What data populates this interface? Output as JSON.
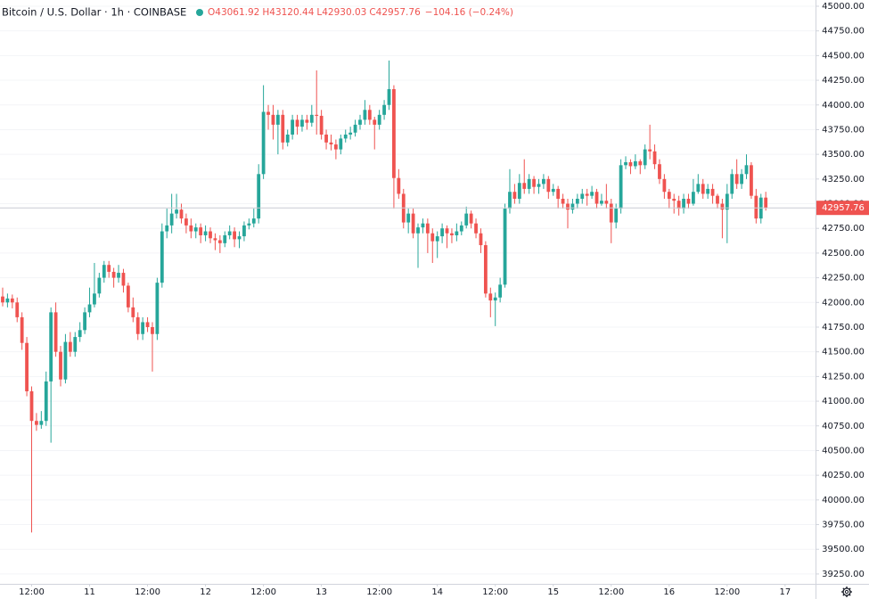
{
  "chart_data": {
    "type": "candlestick",
    "title": "Bitcoin / U.S. Dollar · 1h · COINBASE",
    "legend": [
      "O43061.92",
      "H43120.44",
      "L42930.03",
      "C42957.76",
      "−104.16 (−0.24%)"
    ],
    "up_color": "#26a69a",
    "down_color": "#ef5350",
    "last_price": 42957.76,
    "xlim": [
      -0.55,
      168.3
    ],
    "xticks": [
      {
        "value": 6,
        "label": "12:00"
      },
      {
        "value": 18,
        "label": "11"
      },
      {
        "value": 30,
        "label": "12:00"
      },
      {
        "value": 42,
        "label": "12"
      },
      {
        "value": 54,
        "label": "12:00"
      },
      {
        "value": 66,
        "label": "13"
      },
      {
        "value": 78,
        "label": "12:00"
      },
      {
        "value": 90,
        "label": "14"
      },
      {
        "value": 102,
        "label": "12:00"
      },
      {
        "value": 114,
        "label": "15"
      },
      {
        "value": 126,
        "label": "12:00"
      },
      {
        "value": 138,
        "label": "16"
      },
      {
        "value": 150,
        "label": "12:00"
      },
      {
        "value": 162,
        "label": "17"
      }
    ],
    "ylim": [
      39150,
      45063
    ],
    "yticks": [
      {
        "value": 39250,
        "label": "39250.00"
      },
      {
        "value": 39500,
        "label": "39500.00"
      },
      {
        "value": 39750,
        "label": "39750.00"
      },
      {
        "value": 40000,
        "label": "40000.00"
      },
      {
        "value": 40250,
        "label": "40250.00"
      },
      {
        "value": 40500,
        "label": "40500.00"
      },
      {
        "value": 40750,
        "label": "40750.00"
      },
      {
        "value": 41000,
        "label": "41000.00"
      },
      {
        "value": 41250,
        "label": "41250.00"
      },
      {
        "value": 41500,
        "label": "41500.00"
      },
      {
        "value": 41750,
        "label": "41750.00"
      },
      {
        "value": 42000,
        "label": "42000.00"
      },
      {
        "value": 42250,
        "label": "42250.00"
      },
      {
        "value": 42500,
        "label": "42500.00"
      },
      {
        "value": 42750,
        "label": "42750.00"
      },
      {
        "value": 43000,
        "label": "43000.00"
      },
      {
        "value": 43250,
        "label": "43250.00"
      },
      {
        "value": 43500,
        "label": "43500.00"
      },
      {
        "value": 43750,
        "label": "43750.00"
      },
      {
        "value": 44000,
        "label": "44000.00"
      },
      {
        "value": 44250,
        "label": "44250.00"
      },
      {
        "value": 44500,
        "label": "44500.00"
      },
      {
        "value": 44750,
        "label": "44750.00"
      },
      {
        "value": 45000,
        "label": "45000.00"
      }
    ],
    "grid": true,
    "candles": [
      [
        42060,
        42150,
        41960,
        42000
      ],
      [
        42000,
        42090,
        41950,
        42040
      ],
      [
        42040,
        42080,
        41940,
        42000
      ],
      [
        42000,
        42050,
        41800,
        41850
      ],
      [
        41850,
        41900,
        41520,
        41590
      ],
      [
        41590,
        41650,
        41050,
        41100
      ],
      [
        41100,
        41150,
        39670,
        40800
      ],
      [
        40800,
        40880,
        40700,
        40760
      ],
      [
        40760,
        40900,
        40720,
        40800
      ],
      [
        40800,
        41300,
        40750,
        41200
      ],
      [
        41200,
        41950,
        40580,
        41900
      ],
      [
        41900,
        42000,
        41450,
        41500
      ],
      [
        41500,
        41560,
        41150,
        41220
      ],
      [
        41220,
        41680,
        41180,
        41600
      ],
      [
        41600,
        41700,
        41450,
        41500
      ],
      [
        41500,
        41700,
        41450,
        41650
      ],
      [
        41650,
        41800,
        41600,
        41720
      ],
      [
        41720,
        41950,
        41680,
        41900
      ],
      [
        41900,
        42150,
        41850,
        41980
      ],
      [
        41980,
        42400,
        41950,
        42090
      ],
      [
        42090,
        42300,
        42050,
        42250
      ],
      [
        42250,
        42420,
        42200,
        42380
      ],
      [
        42380,
        42420,
        42250,
        42310
      ],
      [
        42310,
        42350,
        42150,
        42250
      ],
      [
        42250,
        42380,
        42200,
        42300
      ],
      [
        42300,
        42340,
        42100,
        42170
      ],
      [
        42170,
        42200,
        41900,
        41950
      ],
      [
        41950,
        42050,
        41800,
        41850
      ],
      [
        41850,
        41900,
        41620,
        41680
      ],
      [
        41680,
        41850,
        41620,
        41800
      ],
      [
        41800,
        41850,
        41700,
        41750
      ],
      [
        41750,
        41800,
        41300,
        41680
      ],
      [
        41680,
        42250,
        41620,
        42200
      ],
      [
        42200,
        42800,
        42150,
        42720
      ],
      [
        42720,
        42950,
        42650,
        42780
      ],
      [
        42780,
        43100,
        42700,
        42900
      ],
      [
        42900,
        43100,
        42850,
        42940
      ],
      [
        42940,
        43000,
        42800,
        42850
      ],
      [
        42850,
        42900,
        42700,
        42780
      ],
      [
        42780,
        42850,
        42650,
        42720
      ],
      [
        42720,
        42800,
        42650,
        42760
      ],
      [
        42760,
        42800,
        42600,
        42680
      ],
      [
        42680,
        42780,
        42620,
        42720
      ],
      [
        42720,
        42760,
        42600,
        42650
      ],
      [
        42650,
        42700,
        42530,
        42630
      ],
      [
        42630,
        42680,
        42500,
        42600
      ],
      [
        42600,
        42720,
        42560,
        42680
      ],
      [
        42680,
        42780,
        42640,
        42720
      ],
      [
        42720,
        42760,
        42560,
        42640
      ],
      [
        42640,
        42720,
        42550,
        42670
      ],
      [
        42670,
        42820,
        42620,
        42780
      ],
      [
        42780,
        42850,
        42740,
        42800
      ],
      [
        42800,
        42950,
        42760,
        42850
      ],
      [
        42850,
        43400,
        42800,
        43300
      ],
      [
        43300,
        44200,
        43250,
        43930
      ],
      [
        43930,
        44000,
        43750,
        43900
      ],
      [
        43900,
        44000,
        43650,
        43800
      ],
      [
        43800,
        43950,
        43500,
        43900
      ],
      [
        43900,
        43950,
        43550,
        43620
      ],
      [
        43620,
        43750,
        43580,
        43700
      ],
      [
        43700,
        43900,
        43650,
        43850
      ],
      [
        43850,
        43900,
        43700,
        43780
      ],
      [
        43780,
        43900,
        43730,
        43850
      ],
      [
        43850,
        43900,
        43750,
        43820
      ],
      [
        43820,
        44000,
        43780,
        43900
      ],
      [
        43900,
        44350,
        43700,
        43890
      ],
      [
        43890,
        43950,
        43650,
        43700
      ],
      [
        43700,
        43750,
        43550,
        43620
      ],
      [
        43620,
        43700,
        43540,
        43600
      ],
      [
        43600,
        43650,
        43450,
        43550
      ],
      [
        43550,
        43700,
        43500,
        43660
      ],
      [
        43660,
        43750,
        43620,
        43700
      ],
      [
        43700,
        43780,
        43650,
        43720
      ],
      [
        43720,
        43850,
        43680,
        43800
      ],
      [
        43800,
        43900,
        43750,
        43850
      ],
      [
        43850,
        44050,
        43800,
        43950
      ],
      [
        43950,
        44000,
        43800,
        43850
      ],
      [
        43850,
        43880,
        43550,
        43800
      ],
      [
        43800,
        43950,
        43750,
        43900
      ],
      [
        43900,
        44050,
        43850,
        44000
      ],
      [
        44000,
        44450,
        43950,
        44160
      ],
      [
        44160,
        44200,
        42950,
        43260
      ],
      [
        43260,
        43350,
        43050,
        43100
      ],
      [
        43100,
        43150,
        42750,
        42810
      ],
      [
        42810,
        42950,
        42700,
        42900
      ],
      [
        42900,
        42950,
        42650,
        42700
      ],
      [
        42700,
        42800,
        42350,
        42760
      ],
      [
        42760,
        42850,
        42700,
        42800
      ],
      [
        42800,
        42850,
        42500,
        42700
      ],
      [
        42700,
        42750,
        42400,
        42620
      ],
      [
        42620,
        42720,
        42450,
        42670
      ],
      [
        42670,
        42800,
        42600,
        42750
      ],
      [
        42750,
        42780,
        42550,
        42700
      ],
      [
        42700,
        42750,
        42600,
        42680
      ],
      [
        42680,
        42800,
        42620,
        42720
      ],
      [
        42720,
        42820,
        42680,
        42780
      ],
      [
        42780,
        42970,
        42750,
        42900
      ],
      [
        42900,
        42930,
        42750,
        42800
      ],
      [
        42800,
        42850,
        42650,
        42700
      ],
      [
        42700,
        42750,
        42500,
        42580
      ],
      [
        42580,
        42620,
        42050,
        42090
      ],
      [
        42090,
        42150,
        41850,
        42020
      ],
      [
        42020,
        42100,
        41760,
        42050
      ],
      [
        42050,
        42250,
        42000,
        42180
      ],
      [
        42180,
        43000,
        42150,
        42950
      ],
      [
        42950,
        43350,
        42900,
        43120
      ],
      [
        43120,
        43200,
        43000,
        43050
      ],
      [
        43050,
        43300,
        43000,
        43210
      ],
      [
        43210,
        43450,
        43100,
        43150
      ],
      [
        43150,
        43300,
        43100,
        43250
      ],
      [
        43250,
        43280,
        43100,
        43170
      ],
      [
        43170,
        43250,
        43100,
        43200
      ],
      [
        43200,
        43300,
        43150,
        43250
      ],
      [
        43250,
        43280,
        43050,
        43120
      ],
      [
        43120,
        43200,
        43080,
        43150
      ],
      [
        43150,
        43180,
        42950,
        43050
      ],
      [
        43050,
        43100,
        42950,
        43000
      ],
      [
        43000,
        43050,
        42750,
        42940
      ],
      [
        42940,
        43050,
        42900,
        43000
      ],
      [
        43000,
        43100,
        42950,
        43050
      ],
      [
        43050,
        43150,
        43000,
        43100
      ],
      [
        43100,
        43150,
        42980,
        43080
      ],
      [
        43080,
        43180,
        43050,
        43120
      ],
      [
        43120,
        43150,
        42950,
        43000
      ],
      [
        43000,
        43100,
        42980,
        43030
      ],
      [
        43030,
        43200,
        42950,
        43000
      ],
      [
        43000,
        43050,
        42600,
        42810
      ],
      [
        42810,
        43000,
        42750,
        42950
      ],
      [
        42950,
        43450,
        42900,
        43390
      ],
      [
        43390,
        43480,
        43350,
        43420
      ],
      [
        43420,
        43450,
        43300,
        43380
      ],
      [
        43380,
        43500,
        43350,
        43430
      ],
      [
        43430,
        43450,
        43300,
        43390
      ],
      [
        43390,
        43600,
        43350,
        43550
      ],
      [
        43550,
        43800,
        43450,
        43530
      ],
      [
        43530,
        43600,
        43350,
        43400
      ],
      [
        43400,
        43450,
        43200,
        43250
      ],
      [
        43250,
        43300,
        43050,
        43120
      ],
      [
        43120,
        43150,
        42950,
        43050
      ],
      [
        43050,
        43100,
        42900,
        43030
      ],
      [
        43030,
        43080,
        42880,
        42950
      ],
      [
        42950,
        43100,
        42900,
        43050
      ],
      [
        43050,
        43100,
        42950,
        43000
      ],
      [
        43000,
        43250,
        42980,
        43120
      ],
      [
        43120,
        43300,
        43100,
        43200
      ],
      [
        43200,
        43250,
        43050,
        43100
      ],
      [
        43100,
        43200,
        43050,
        43150
      ],
      [
        43150,
        43200,
        43000,
        43080
      ],
      [
        43080,
        43100,
        42950,
        43000
      ],
      [
        43000,
        43050,
        42650,
        42940
      ],
      [
        42940,
        43200,
        42600,
        43100
      ],
      [
        43100,
        43350,
        43050,
        43300
      ],
      [
        43300,
        43450,
        43150,
        43200
      ],
      [
        43200,
        43350,
        43150,
        43300
      ],
      [
        43300,
        43500,
        43250,
        43390
      ],
      [
        43390,
        43420,
        43050,
        43080
      ],
      [
        43080,
        43150,
        42800,
        42850
      ],
      [
        42850,
        43100,
        42800,
        43061.92
      ],
      [
        43061.92,
        43120.44,
        42930.03,
        42957.76
      ]
    ]
  }
}
